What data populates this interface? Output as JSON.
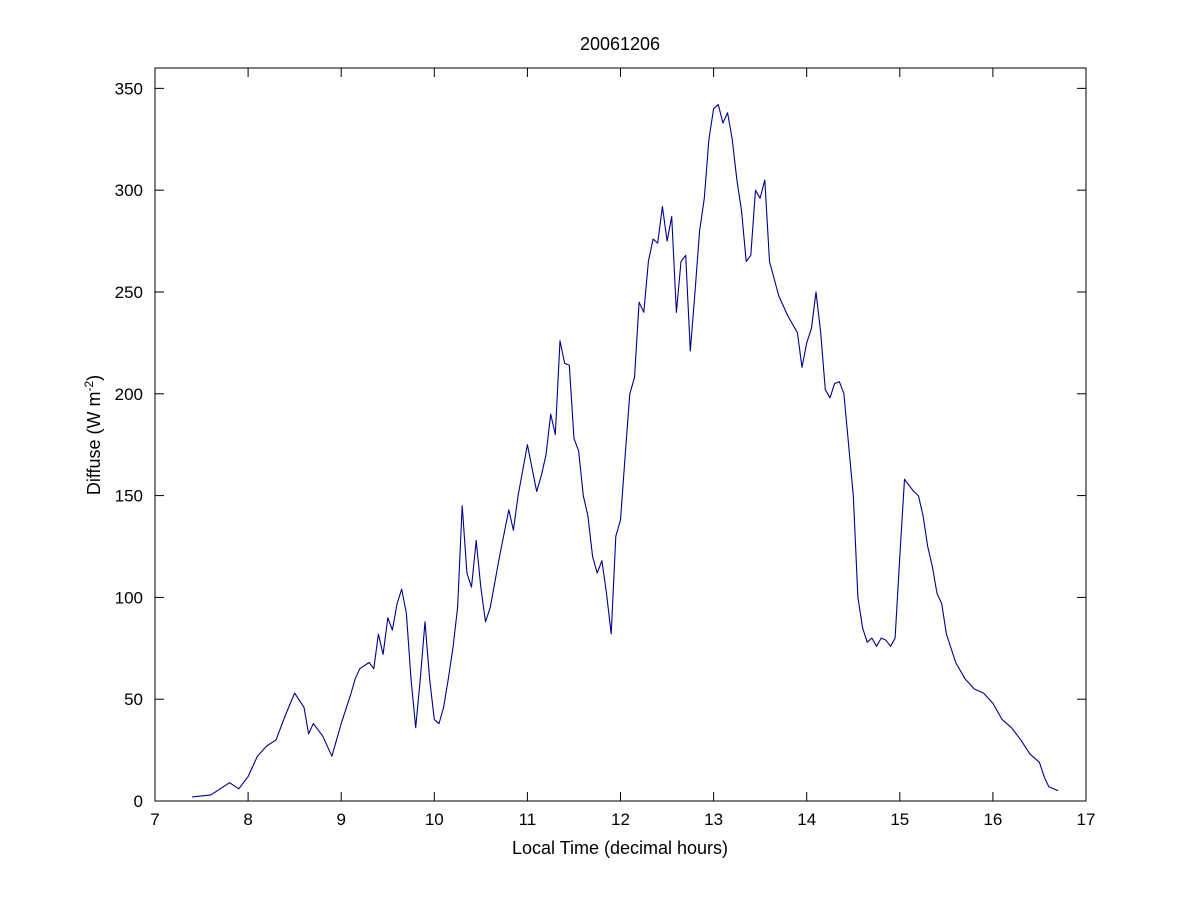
{
  "chart_data": {
    "type": "line",
    "title": "20061206",
    "xlabel": "Local Time (decimal hours)",
    "ylabel": "Diffuse (W m",
    "ylabel_sup": "-2",
    "ylabel_close": ")",
    "xlim": [
      7,
      17
    ],
    "ylim": [
      0,
      360
    ],
    "xticks": [
      7,
      8,
      9,
      10,
      11,
      12,
      13,
      14,
      15,
      16,
      17
    ],
    "yticks": [
      0,
      50,
      100,
      150,
      200,
      250,
      300,
      350
    ],
    "grid": false,
    "colors": {
      "line": "#00008B",
      "axes": "#000000"
    },
    "series": [
      {
        "x": [
          7.4,
          7.6,
          7.8,
          7.9,
          8.0,
          8.1,
          8.2,
          8.3,
          8.4,
          8.5,
          8.6,
          8.65,
          8.7,
          8.8,
          8.9,
          9.0,
          9.1,
          9.15,
          9.2,
          9.3,
          9.35,
          9.4,
          9.45,
          9.5,
          9.55,
          9.6,
          9.65,
          9.7,
          9.75,
          9.8,
          9.85,
          9.9,
          9.95,
          10.0,
          10.05,
          10.1,
          10.15,
          10.2,
          10.25,
          10.3,
          10.35,
          10.4,
          10.45,
          10.5,
          10.55,
          10.6,
          10.7,
          10.8,
          10.85,
          10.9,
          11.0,
          11.1,
          11.15,
          11.2,
          11.25,
          11.3,
          11.35,
          11.4,
          11.45,
          11.5,
          11.55,
          11.6,
          11.65,
          11.7,
          11.75,
          11.8,
          11.85,
          11.9,
          11.95,
          12.0,
          12.05,
          12.1,
          12.15,
          12.2,
          12.25,
          12.3,
          12.35,
          12.4,
          12.45,
          12.5,
          12.55,
          12.6,
          12.65,
          12.7,
          12.75,
          12.8,
          12.85,
          12.9,
          12.95,
          13.0,
          13.05,
          13.1,
          13.15,
          13.2,
          13.25,
          13.3,
          13.35,
          13.4,
          13.45,
          13.5,
          13.55,
          13.6,
          13.7,
          13.8,
          13.9,
          13.95,
          14.0,
          14.05,
          14.1,
          14.15,
          14.2,
          14.25,
          14.3,
          14.35,
          14.4,
          14.45,
          14.5,
          14.55,
          14.6,
          14.65,
          14.7,
          14.75,
          14.8,
          14.85,
          14.9,
          14.95,
          15.0,
          15.05,
          15.1,
          15.15,
          15.2,
          15.25,
          15.3,
          15.35,
          15.4,
          15.45,
          15.5,
          15.6,
          15.7,
          15.8,
          15.9,
          16.0,
          16.1,
          16.2,
          16.3,
          16.4,
          16.5,
          16.55,
          16.6,
          16.7
        ],
        "y": [
          2,
          3,
          9,
          6,
          12,
          22,
          27,
          30,
          42,
          53,
          46,
          33,
          38,
          32,
          22,
          38,
          52,
          60,
          65,
          68,
          65,
          82,
          72,
          90,
          84,
          97,
          104,
          92,
          60,
          36,
          60,
          88,
          60,
          40,
          38,
          46,
          60,
          75,
          95,
          145,
          112,
          105,
          128,
          105,
          88,
          95,
          120,
          143,
          133,
          150,
          175,
          152,
          160,
          170,
          190,
          180,
          226,
          215,
          214,
          178,
          172,
          150,
          140,
          120,
          112,
          118,
          102,
          82,
          130,
          138,
          170,
          200,
          208,
          245,
          240,
          265,
          276,
          274,
          292,
          275,
          287,
          240,
          265,
          268,
          221,
          250,
          280,
          296,
          325,
          340,
          342,
          333,
          338,
          325,
          305,
          290,
          265,
          268,
          300,
          296,
          305,
          265,
          248,
          238,
          230,
          213,
          225,
          232,
          250,
          230,
          202,
          198,
          205,
          206,
          200,
          175,
          150,
          100,
          85,
          78,
          80,
          76,
          80,
          79,
          76,
          80,
          120,
          158,
          155,
          152,
          150,
          140,
          125,
          115,
          102,
          97,
          82,
          68,
          60,
          55,
          53,
          48,
          40,
          36,
          30,
          23,
          19,
          12,
          7,
          5
        ]
      }
    ]
  }
}
